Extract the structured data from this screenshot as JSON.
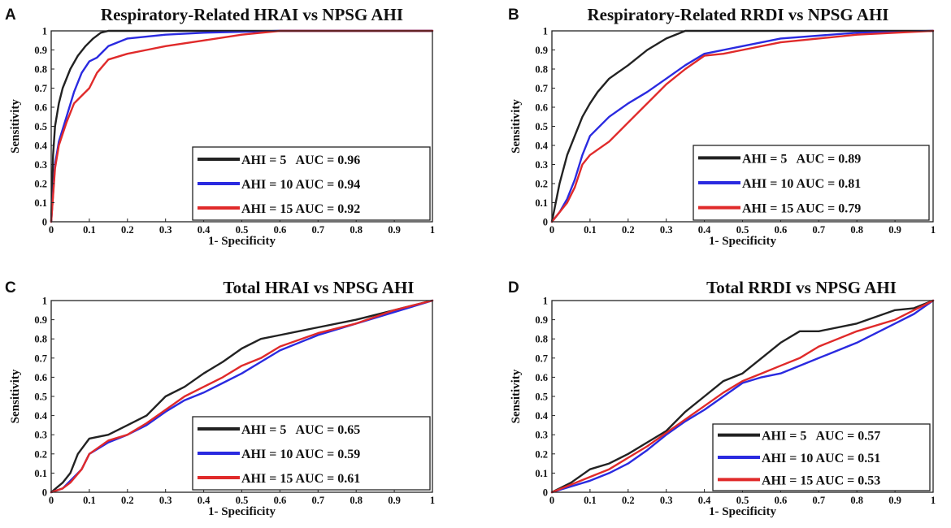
{
  "figure": {
    "panels": [
      {
        "letter": "A"
      },
      {
        "letter": "B"
      },
      {
        "letter": "C"
      },
      {
        "letter": "D"
      }
    ]
  },
  "chart_data": [
    {
      "panel": "A",
      "type": "line",
      "title": "Respiratory-Related HRAI vs NPSG AHI",
      "xlabel": "1- Specificity",
      "ylabel": "Sensitivity",
      "xlim": [
        0,
        1
      ],
      "ylim": [
        0,
        1
      ],
      "xticks": [
        "0",
        "0.1",
        "0.2",
        "0.3",
        "0.4",
        "0.5",
        "0.6",
        "0.7",
        "0.8",
        "0.9",
        "1"
      ],
      "yticks": [
        "0",
        "0.1",
        "0.2",
        "0.3",
        "0.4",
        "0.5",
        "0.6",
        "0.7",
        "0.8",
        "0.9",
        "1"
      ],
      "legend_position": "lower-right",
      "series": [
        {
          "name": "AHI = 5   AUC = 0.96",
          "color": "#222222",
          "x": [
            0,
            0.005,
            0.01,
            0.02,
            0.03,
            0.05,
            0.07,
            0.09,
            0.11,
            0.13,
            0.15,
            0.2,
            0.3,
            1
          ],
          "y": [
            0,
            0.35,
            0.5,
            0.62,
            0.7,
            0.8,
            0.87,
            0.92,
            0.96,
            0.99,
            1.0,
            1.0,
            1.0,
            1.0
          ]
        },
        {
          "name": "AHI = 10 AUC = 0.94",
          "color": "#2a2ae0",
          "x": [
            0,
            0.01,
            0.02,
            0.04,
            0.06,
            0.08,
            0.1,
            0.12,
            0.15,
            0.2,
            0.3,
            0.4,
            0.6,
            1
          ],
          "y": [
            0,
            0.3,
            0.42,
            0.55,
            0.68,
            0.78,
            0.84,
            0.86,
            0.92,
            0.96,
            0.98,
            0.99,
            1.0,
            1.0
          ]
        },
        {
          "name": "AHI = 15 AUC = 0.92",
          "color": "#e02a2a",
          "x": [
            0,
            0.01,
            0.02,
            0.04,
            0.06,
            0.08,
            0.1,
            0.12,
            0.15,
            0.2,
            0.25,
            0.3,
            0.4,
            0.5,
            0.6,
            1
          ],
          "y": [
            0,
            0.28,
            0.4,
            0.52,
            0.62,
            0.66,
            0.7,
            0.78,
            0.85,
            0.88,
            0.9,
            0.92,
            0.95,
            0.98,
            1.0,
            1.0
          ]
        }
      ]
    },
    {
      "panel": "B",
      "type": "line",
      "title": "Respiratory-Related RRDI vs NPSG AHI",
      "xlabel": "1- Specificity",
      "ylabel": "Sensitivity",
      "xlim": [
        0,
        1
      ],
      "ylim": [
        0,
        1
      ],
      "xticks": [
        "0",
        "0.1",
        "0.2",
        "0.3",
        "0.4",
        "0.5",
        "0.6",
        "0.7",
        "0.8",
        "0.9",
        "1"
      ],
      "yticks": [
        "0",
        "0.1",
        "0.2",
        "0.3",
        "0.4",
        "0.5",
        "0.6",
        "0.7",
        "0.8",
        "0.9",
        "1"
      ],
      "legend_position": "lower-right",
      "series": [
        {
          "name": "AHI = 5   AUC = 0.89",
          "color": "#222222",
          "x": [
            0,
            0.01,
            0.02,
            0.04,
            0.06,
            0.08,
            0.1,
            0.12,
            0.15,
            0.2,
            0.25,
            0.3,
            0.35,
            0.4,
            0.5,
            1
          ],
          "y": [
            0,
            0.1,
            0.2,
            0.35,
            0.45,
            0.55,
            0.62,
            0.68,
            0.75,
            0.82,
            0.9,
            0.96,
            1.0,
            1.0,
            1.0,
            1.0
          ]
        },
        {
          "name": "AHI = 10 AUC = 0.81",
          "color": "#2a2ae0",
          "x": [
            0,
            0.02,
            0.04,
            0.06,
            0.08,
            0.1,
            0.15,
            0.2,
            0.25,
            0.3,
            0.35,
            0.4,
            0.45,
            0.5,
            0.6,
            0.8,
            1
          ],
          "y": [
            0,
            0.05,
            0.12,
            0.22,
            0.35,
            0.45,
            0.55,
            0.62,
            0.68,
            0.75,
            0.82,
            0.88,
            0.9,
            0.92,
            0.96,
            0.99,
            1.0
          ]
        },
        {
          "name": "AHI = 15 AUC = 0.79",
          "color": "#e02a2a",
          "x": [
            0,
            0.02,
            0.04,
            0.06,
            0.08,
            0.1,
            0.15,
            0.2,
            0.25,
            0.3,
            0.35,
            0.4,
            0.45,
            0.5,
            0.6,
            0.8,
            1
          ],
          "y": [
            0,
            0.05,
            0.1,
            0.18,
            0.3,
            0.35,
            0.42,
            0.52,
            0.62,
            0.72,
            0.8,
            0.87,
            0.88,
            0.9,
            0.94,
            0.98,
            1.0
          ]
        }
      ]
    },
    {
      "panel": "C",
      "type": "line",
      "title": "Total HRAI vs NPSG AHI",
      "xlabel": "1- Specificity",
      "ylabel": "Sensitivity",
      "xlim": [
        0,
        1
      ],
      "ylim": [
        0,
        1
      ],
      "xticks": [
        "0",
        "0.1",
        "0.2",
        "0.3",
        "0.4",
        "0.5",
        "0.6",
        "0.7",
        "0.8",
        "0.9",
        "1"
      ],
      "yticks": [
        "0",
        "0.1",
        "0.2",
        "0.3",
        "0.4",
        "0.5",
        "0.6",
        "0.7",
        "0.8",
        "0.9",
        "1"
      ],
      "legend_position": "lower-right",
      "series": [
        {
          "name": "AHI = 5   AUC = 0.65",
          "color": "#222222",
          "x": [
            0,
            0.03,
            0.05,
            0.07,
            0.1,
            0.15,
            0.2,
            0.25,
            0.3,
            0.35,
            0.4,
            0.45,
            0.5,
            0.55,
            0.6,
            0.7,
            0.8,
            0.9,
            1
          ],
          "y": [
            0,
            0.05,
            0.1,
            0.2,
            0.28,
            0.3,
            0.35,
            0.4,
            0.5,
            0.55,
            0.62,
            0.68,
            0.75,
            0.8,
            0.82,
            0.86,
            0.9,
            0.95,
            1.0
          ]
        },
        {
          "name": "AHI = 10 AUC = 0.59",
          "color": "#2a2ae0",
          "x": [
            0,
            0.03,
            0.05,
            0.08,
            0.1,
            0.15,
            0.2,
            0.25,
            0.3,
            0.35,
            0.4,
            0.45,
            0.5,
            0.55,
            0.6,
            0.7,
            0.8,
            0.9,
            1
          ],
          "y": [
            0,
            0.02,
            0.06,
            0.12,
            0.2,
            0.26,
            0.3,
            0.35,
            0.42,
            0.48,
            0.52,
            0.57,
            0.62,
            0.68,
            0.74,
            0.82,
            0.88,
            0.94,
            1.0
          ]
        },
        {
          "name": "AHI = 15 AUC = 0.61",
          "color": "#e02a2a",
          "x": [
            0,
            0.03,
            0.05,
            0.08,
            0.1,
            0.15,
            0.2,
            0.25,
            0.3,
            0.35,
            0.4,
            0.45,
            0.5,
            0.55,
            0.6,
            0.7,
            0.8,
            0.9,
            1
          ],
          "y": [
            0,
            0.02,
            0.05,
            0.12,
            0.2,
            0.27,
            0.3,
            0.36,
            0.43,
            0.5,
            0.55,
            0.6,
            0.66,
            0.7,
            0.76,
            0.83,
            0.88,
            0.95,
            1.0
          ]
        }
      ]
    },
    {
      "panel": "D",
      "type": "line",
      "title": "Total RRDI vs NPSG AHI",
      "xlabel": "1- Specificity",
      "ylabel": "Sensitivity",
      "xlim": [
        0,
        1
      ],
      "ylim": [
        0,
        1
      ],
      "xticks": [
        "0",
        "0.1",
        "0.2",
        "0.3",
        "0.4",
        "0.5",
        "0.6",
        "0.7",
        "0.8",
        "0.9",
        "1"
      ],
      "yticks": [
        "0",
        "0.1",
        "0.2",
        "0.3",
        "0.4",
        "0.5",
        "0.6",
        "0.7",
        "0.8",
        "0.9",
        "1"
      ],
      "legend_position": "lower-right",
      "series": [
        {
          "name": "AHI = 5   AUC = 0.57",
          "color": "#222222",
          "x": [
            0,
            0.05,
            0.1,
            0.15,
            0.2,
            0.25,
            0.3,
            0.35,
            0.4,
            0.45,
            0.5,
            0.55,
            0.6,
            0.65,
            0.7,
            0.8,
            0.9,
            0.95,
            1
          ],
          "y": [
            0,
            0.05,
            0.12,
            0.15,
            0.2,
            0.26,
            0.32,
            0.42,
            0.5,
            0.58,
            0.62,
            0.7,
            0.78,
            0.84,
            0.84,
            0.88,
            0.95,
            0.96,
            1.0
          ]
        },
        {
          "name": "AHI = 10 AUC = 0.51",
          "color": "#2a2ae0",
          "x": [
            0,
            0.05,
            0.1,
            0.15,
            0.2,
            0.25,
            0.3,
            0.35,
            0.4,
            0.45,
            0.5,
            0.55,
            0.6,
            0.65,
            0.7,
            0.8,
            0.9,
            0.95,
            1
          ],
          "y": [
            0,
            0.03,
            0.06,
            0.1,
            0.15,
            0.22,
            0.3,
            0.37,
            0.43,
            0.5,
            0.57,
            0.6,
            0.62,
            0.66,
            0.7,
            0.78,
            0.88,
            0.93,
            1.0
          ]
        },
        {
          "name": "AHI = 15 AUC = 0.53",
          "color": "#e02a2a",
          "x": [
            0,
            0.05,
            0.1,
            0.15,
            0.2,
            0.25,
            0.3,
            0.35,
            0.4,
            0.45,
            0.5,
            0.55,
            0.6,
            0.65,
            0.7,
            0.8,
            0.9,
            0.95,
            1
          ],
          "y": [
            0,
            0.04,
            0.08,
            0.12,
            0.18,
            0.24,
            0.31,
            0.38,
            0.45,
            0.52,
            0.58,
            0.62,
            0.66,
            0.7,
            0.76,
            0.84,
            0.9,
            0.95,
            1.0
          ]
        }
      ]
    }
  ]
}
